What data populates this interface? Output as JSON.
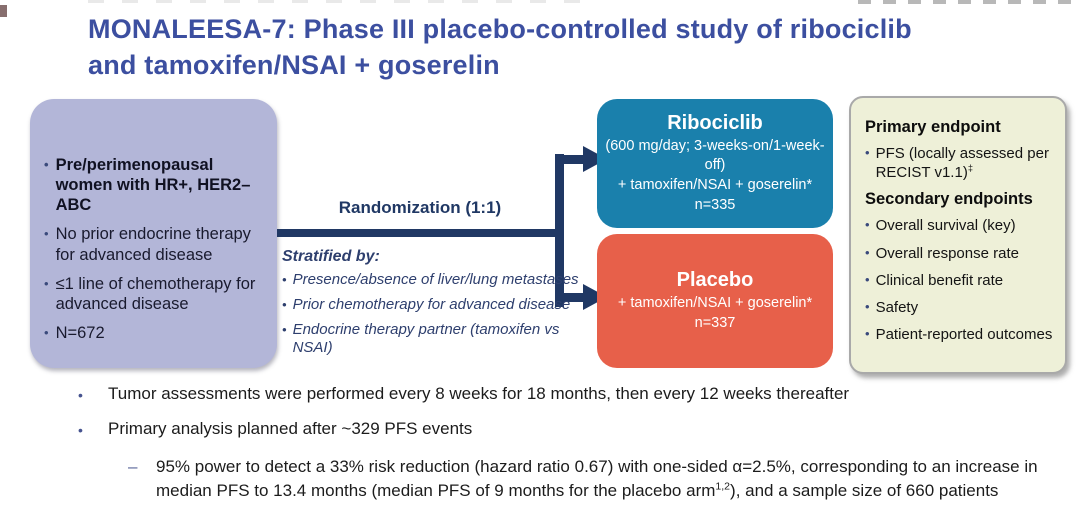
{
  "slide": {
    "title_line1": "MONALEESA-7: Phase III placebo-controlled study of ribociclib",
    "title_line2": "and tamoxifen/NSAI + goserelin"
  },
  "population_box": {
    "items": [
      "Pre/perimenopausal women with HR+, HER2– ABC",
      "No prior endocrine therapy for advanced disease",
      "≤1 line of chemotherapy for advanced disease",
      "N=672"
    ]
  },
  "randomization": {
    "label": "Randomization (1:1)",
    "stratified_title": "Stratified by:",
    "stratified_items": [
      "Presence/absence of liver/lung metastases",
      "Prior chemotherapy for advanced disease",
      "Endocrine therapy partner (tamoxifen vs NSAI)"
    ]
  },
  "ribociclib_arm": {
    "title": "Ribociclib",
    "line1": "(600 mg/day; 3-weeks-on/1-week-off)",
    "line2": "+ tamoxifen/NSAI + goserelin*",
    "n": "n=335"
  },
  "placebo_arm": {
    "title": "Placebo",
    "line1": "+ tamoxifen/NSAI + goserelin*",
    "n": "n=337"
  },
  "endpoints_box": {
    "primary_header": "Primary endpoint",
    "primary_item": "PFS (locally assessed per RECIST v1.1)",
    "primary_item_superscript": "‡",
    "secondary_header": "Secondary endpoints",
    "secondary_items": [
      "Overall survival (key)",
      "Overall response rate",
      "Clinical benefit rate",
      "Safety",
      "Patient-reported outcomes"
    ]
  },
  "notes": {
    "bullet1": "Tumor assessments were performed every 8 weeks for 18 months, then every 12 weeks thereafter",
    "bullet2": "Primary analysis planned after ~329 PFS events",
    "sub_bullet_dash": "–",
    "sub_bullet_part1": "95% power to detect a 33% risk reduction (hazard ratio 0.67) with one-sided α=2.5%, corresponding to an increase in median PFS to 13.4 months (median PFS of 9 months for the placebo arm",
    "sub_bullet_superscript": "1,2",
    "sub_bullet_part2": "), and a sample size of 660 patients"
  },
  "colors": {
    "title_blue": "#3c4fa0",
    "navy_arrow": "#203864",
    "population_bg": "#b3b6d8",
    "ribociclib_bg": "#1a80ac",
    "placebo_bg": "#e7604a",
    "endpoints_bg": "#eef0d8",
    "endpoints_border": "#a9a9a9"
  }
}
